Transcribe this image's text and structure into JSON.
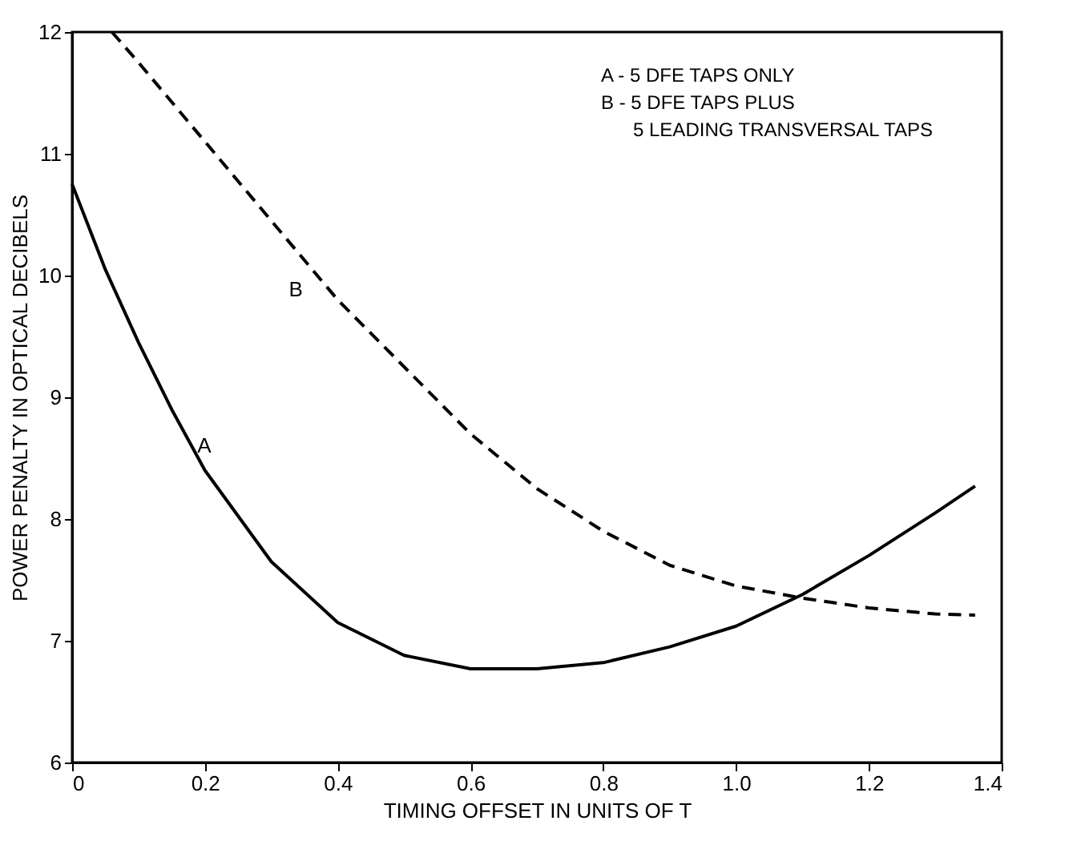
{
  "chart_data": {
    "type": "line",
    "xlabel": "TIMING OFFSET IN UNITS OF T",
    "ylabel": "POWER PENALTY IN OPTICAL DECIBELS",
    "xlim": [
      0,
      1.4
    ],
    "ylim": [
      6,
      12
    ],
    "xticks": [
      0,
      0.2,
      0.4,
      0.6,
      0.8,
      {
        "value": 1,
        "label": "1.0"
      },
      1.2,
      1.4
    ],
    "yticks": [
      6,
      7,
      8,
      9,
      10,
      11,
      12
    ],
    "grid": false,
    "marker": "none",
    "series": [
      {
        "color": "#000000",
        "line_style": "solid",
        "x": [
          0,
          0.05,
          0.1,
          0.15,
          0.2,
          0.3,
          0.4,
          0.5,
          0.6,
          0.7,
          0.8,
          0.9,
          1.0,
          1.1,
          1.2,
          1.3,
          1.36
        ],
        "values": [
          10.75,
          10.05,
          9.45,
          8.9,
          8.4,
          7.65,
          7.15,
          6.88,
          6.77,
          6.77,
          6.82,
          6.95,
          7.12,
          7.38,
          7.7,
          8.05,
          8.27
        ]
      },
      {
        "color": "#000000",
        "line_style": "dashed",
        "x": [
          0.06,
          0.1,
          0.2,
          0.3,
          0.4,
          0.5,
          0.6,
          0.7,
          0.8,
          0.9,
          1.0,
          1.1,
          1.2,
          1.3,
          1.36
        ],
        "values": [
          12,
          11.75,
          11.1,
          10.45,
          9.8,
          9.25,
          8.7,
          8.25,
          7.9,
          7.62,
          7.45,
          7.35,
          7.27,
          7.22,
          7.21
        ]
      }
    ],
    "annotations": [
      {
        "text": "A",
        "x": 0.17,
        "y": 8.6
      },
      {
        "text": "B",
        "x": 0.39,
        "y": 9.88
      },
      "A - 5 DFE TAPS ONLY",
      "B - 5 DFE TAPS PLUS",
      "5 LEADING TRANSVERSAL TAPS"
    ]
  }
}
